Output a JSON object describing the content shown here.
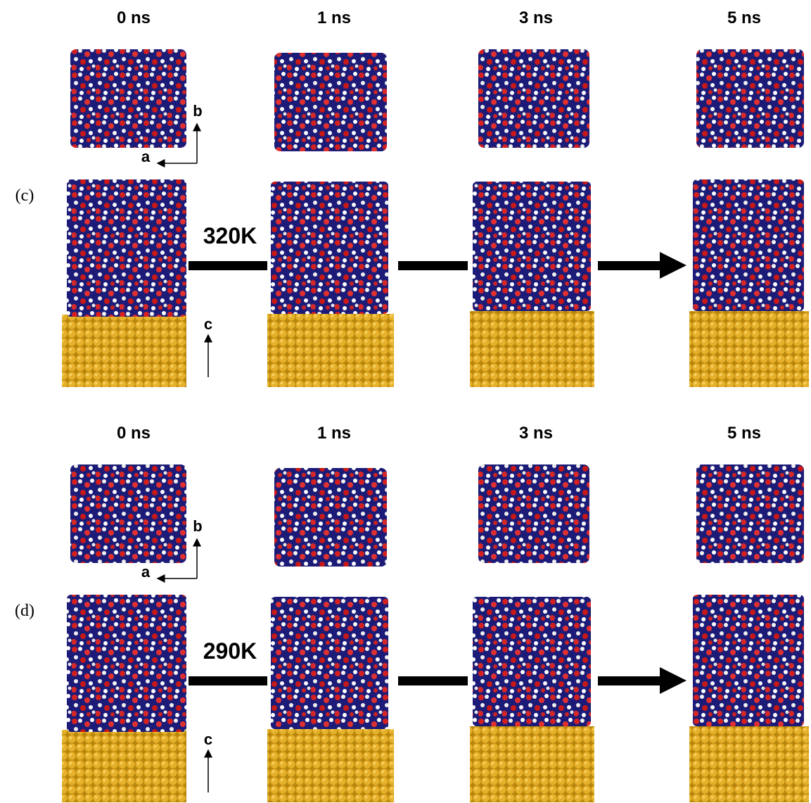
{
  "panels": [
    {
      "label": "(c)",
      "temperature": "320K",
      "times": [
        "0 ns",
        "1 ns",
        "3 ns",
        "5 ns"
      ],
      "axis_labels": {
        "b": "b",
        "a": "a",
        "c": "c"
      }
    },
    {
      "label": "(d)",
      "temperature": "290K",
      "times": [
        "0 ns",
        "1 ns",
        "3 ns",
        "5 ns"
      ],
      "axis_labels": {
        "b": "b",
        "a": "a",
        "c": "c"
      }
    }
  ]
}
